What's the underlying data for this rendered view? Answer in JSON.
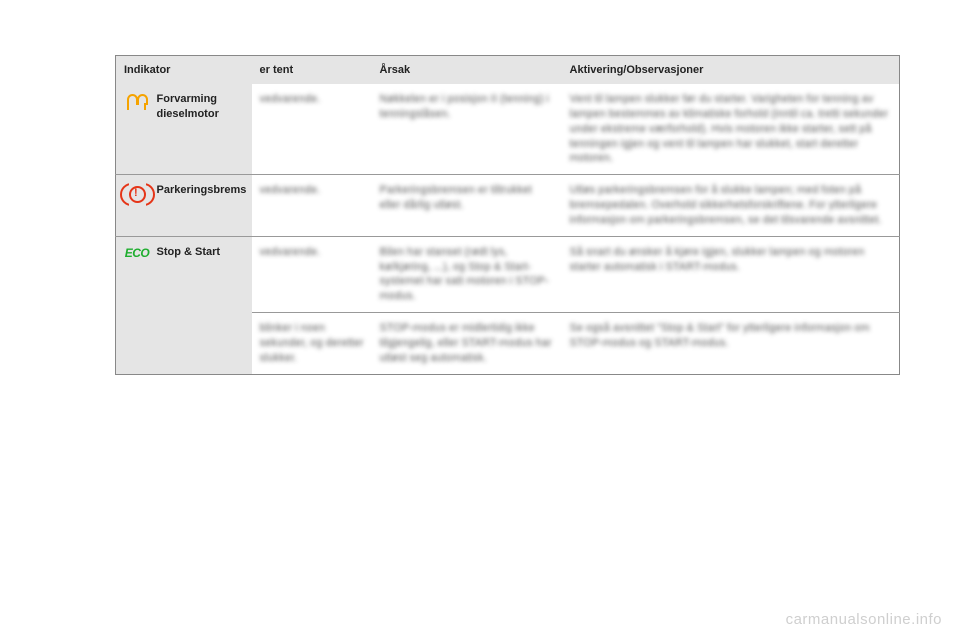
{
  "headers": {
    "indikator": "Indikator",
    "tent": "er tent",
    "arsak": "Årsak",
    "aktivering": "Aktivering/Observasjoner"
  },
  "rows": [
    {
      "icon": "glow-plug",
      "label": "Forvarming dieselmotor",
      "cells": [
        {
          "tent": "vedvarende.",
          "arsak": "Nøkkelen er i posisjon II (tenning) i tenningslåsen.",
          "akt": "Vent til lampen slukker før du starter.\nVarigheten for tenning av lampen bestemmes av klimatiske forhold (inntil ca. tretti sekunder under ekstreme værforhold).\nHvis motoren ikke starter, sett på tenningen igjen og vent til lampen har slukket, start deretter motoren."
        }
      ]
    },
    {
      "icon": "brake",
      "label": "Parkeringsbrems",
      "cells": [
        {
          "tent": "vedvarende.",
          "arsak": "Parkeringsbremsen er tiltrukket eller dårlig utløst.",
          "akt": "Utløs parkeringsbremsen for å slukke lampen; med foten på bremsepedalen.\nOverhold sikkerhetsforskriftene.\nFor ytterligere informasjon om parkeringsbremsen, se det tilsvarende avsnittet."
        }
      ]
    },
    {
      "icon": "eco",
      "label": "Stop & Start",
      "cells": [
        {
          "tent": "vedvarende.",
          "arsak": "Bilen har stanset (rødt lys, kø/kjøring, ...), og Stop & Start-systemet har satt motoren i STOP-modus.",
          "akt": "Så snart du ønsker å kjøre igjen, slukker lampen og motoren starter automatisk i START-modus."
        },
        {
          "tent": "blinker i noen sekunder, og deretter slukker.",
          "arsak": "STOP-modus er midlertidig ikke tilgjengelig,\neller\nSTART-modus har utløst seg automatisk.",
          "akt": "Se også avsnittet \"Stop & Start\" for ytterligere informasjon om STOP-modus og START-modus."
        }
      ]
    }
  ],
  "watermark": "carmanualsonline.info",
  "colors": {
    "header_bg": "#e5e5e5",
    "border": "#888888",
    "glow": "#f5a300",
    "brake": "#e53518",
    "eco": "#1fae2f",
    "watermark": "#cfcfcf"
  }
}
